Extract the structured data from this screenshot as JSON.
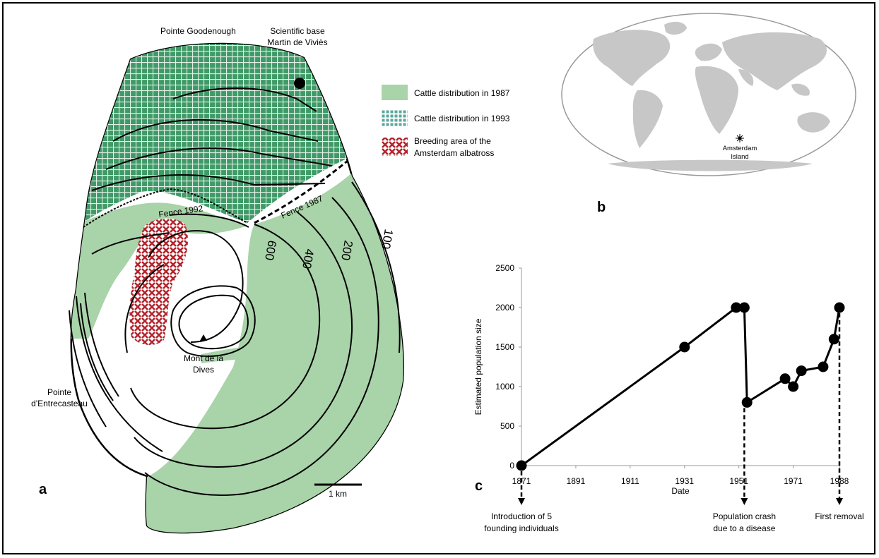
{
  "colors": {
    "cattle_1987": "#a9d3a9",
    "cattle_1993": "#3f9a67",
    "albatross": "#b3242c",
    "land": "#c7c7c7",
    "ocean": "#ffffff"
  },
  "panel_a": {
    "label": "a",
    "places": {
      "pointe_goodenough": "Pointe Goodenough",
      "base_line1": "Scientific base",
      "base_line2": "Martin de Viviès",
      "pointe_entrecasteau_line1": "Pointe",
      "pointe_entrecasteau_line2": "d'Entrecasteau",
      "mont_line1": "Mont de la",
      "mont_line2": "Dives"
    },
    "fences": {
      "fence_1992": "Fence 1992",
      "fence_1987": "Fence 1987"
    },
    "elevations": [
      "600",
      "400",
      "200",
      "100"
    ],
    "scale_bar": "1 km",
    "legend": [
      {
        "pattern": "solid-green",
        "text": "Cattle distribution in 1987"
      },
      {
        "pattern": "grid-green",
        "text": "Cattle distribution in 1993"
      },
      {
        "pattern": "cross-red",
        "text": "Breeding area of the",
        "text2": "Amsterdam albatross"
      }
    ]
  },
  "panel_b": {
    "label": "b",
    "marker_line1": "Amsterdam",
    "marker_line2": "Island"
  },
  "panel_c": {
    "label": "c",
    "annotations": [
      {
        "x": 1871,
        "line1": "Introduction of 5",
        "line2": "founding individuals"
      },
      {
        "x": 1953,
        "line1": "Population crash",
        "line2": "due to a disease"
      },
      {
        "x": 1988,
        "line1": "First removal",
        "line2": ""
      }
    ]
  },
  "chart_data": {
    "type": "line",
    "title": "",
    "xlabel": "Date",
    "ylabel": "Estimated population size",
    "xlim": [
      1871,
      1988
    ],
    "ylim": [
      0,
      2500
    ],
    "x_ticks": [
      "1871",
      "1891",
      "1911",
      "1931",
      "1951",
      "1971",
      "1988"
    ],
    "y_ticks": [
      "0",
      "500",
      "1000",
      "1500",
      "2000",
      "2500"
    ],
    "grid": false,
    "series": [
      {
        "x": [
          1871,
          1931,
          1950,
          1953,
          1954,
          1968,
          1971,
          1974,
          1982,
          1986,
          1988
        ],
        "y": [
          0,
          1500,
          2000,
          2000,
          800,
          1100,
          1000,
          1200,
          1250,
          1600,
          2000
        ]
      }
    ]
  }
}
